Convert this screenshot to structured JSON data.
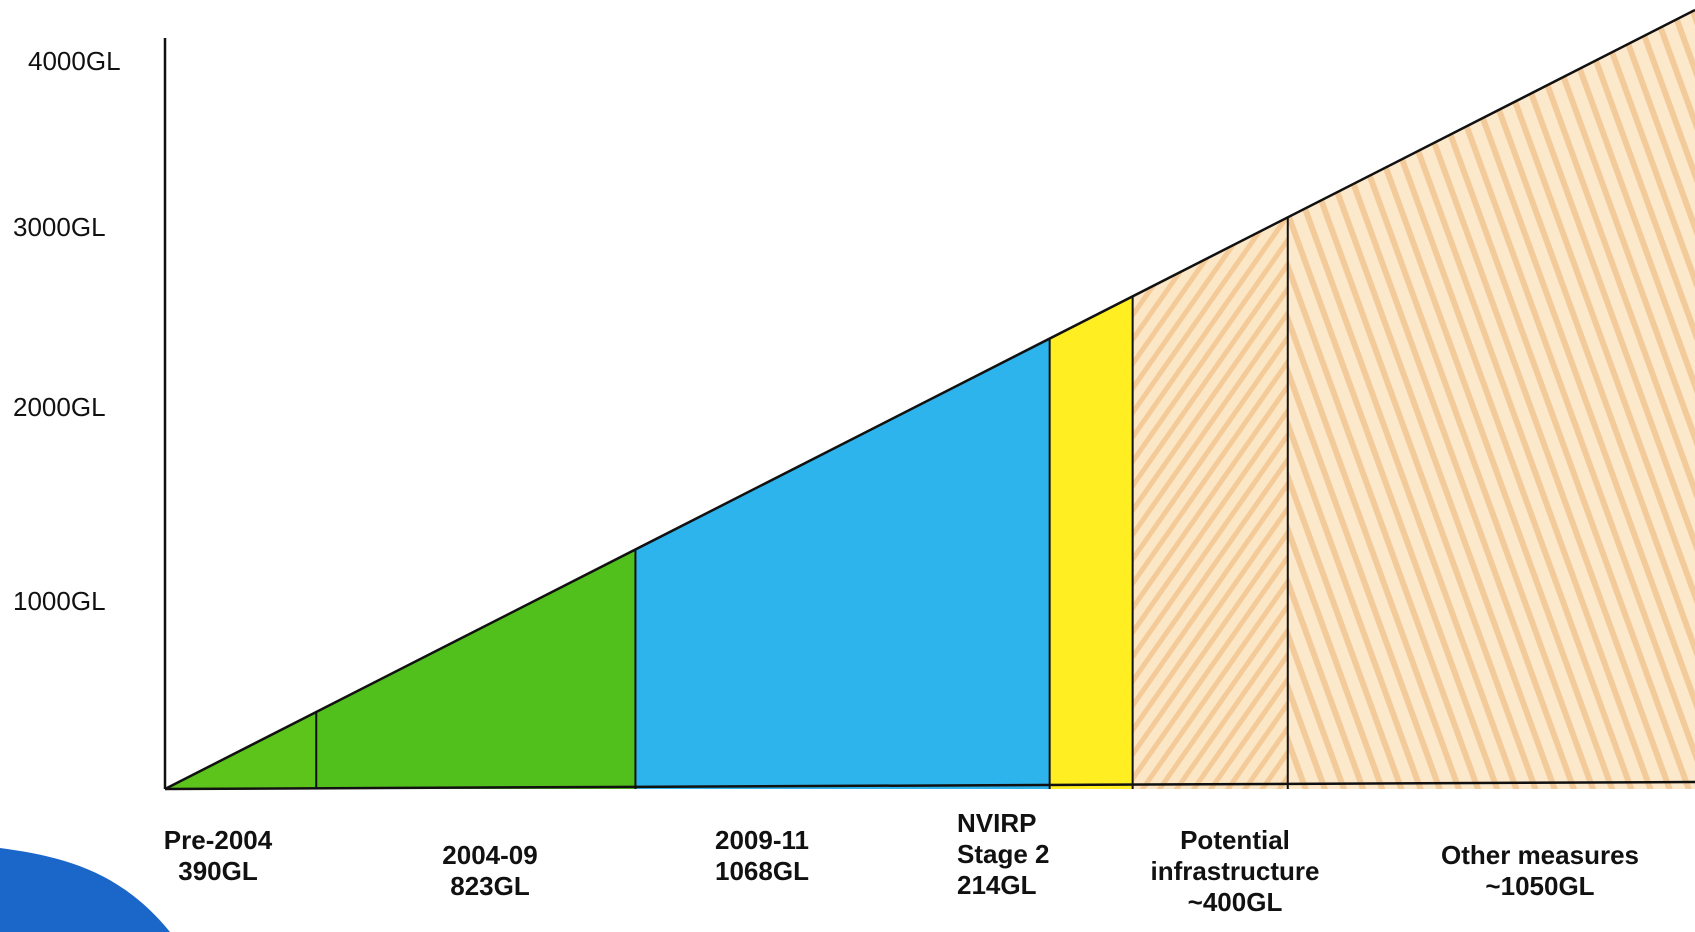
{
  "chart_data": {
    "type": "area",
    "ylim": [
      0,
      4000
    ],
    "yticks": [
      "1000GL",
      "2000GL",
      "3000GL",
      "4000GL"
    ],
    "series": [
      {
        "label": [
          "Pre-2004",
          "390GL"
        ],
        "value": 390,
        "color": "#5cc41a"
      },
      {
        "label": [
          "2004-09",
          "823GL"
        ],
        "value": 823,
        "color": "#52c01c"
      },
      {
        "label": [
          "2009-11",
          "1068GL"
        ],
        "value": 1068,
        "color": "#2eb4ec"
      },
      {
        "label": [
          "NVIRP",
          "Stage 2",
          "214GL"
        ],
        "value": 214,
        "color": "#ffee22"
      },
      {
        "label": [
          "Potential",
          "infrastructure",
          "~400GL"
        ],
        "value": 400,
        "color": "#f3c98a"
      },
      {
        "label": [
          "Other measures",
          "~1050GL"
        ],
        "value": 1050,
        "color": "#f0c080"
      }
    ]
  }
}
